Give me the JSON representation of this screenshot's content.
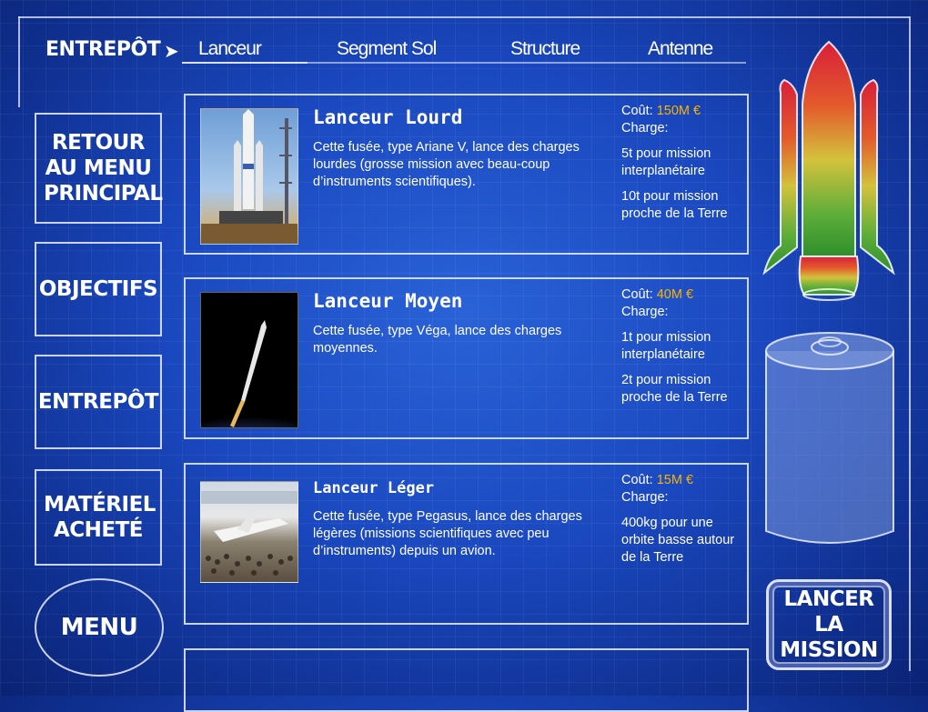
{
  "nav": {
    "brand": "ENTREPÔT",
    "tabs": [
      {
        "label": "Lanceur",
        "active": true
      },
      {
        "label": "Segment Sol",
        "active": false
      },
      {
        "label": "Structure",
        "active": false
      },
      {
        "label": "Antenne",
        "active": false
      }
    ]
  },
  "sidebar": {
    "items": [
      {
        "label": "RETOUR AU MENU PRINCIPAL"
      },
      {
        "label": "OBJECTIFS"
      },
      {
        "label": "ENTREPÔT"
      },
      {
        "label": "MATÉRIEL ACHETÉ"
      }
    ],
    "menu_label": "MENU"
  },
  "cards": [
    {
      "title": "Lanceur Lourd",
      "description": "Cette fusée, type Ariane V, lance des charges lourdes (grosse mission avec beau-coup d’instruments scientifiques).",
      "cost_label": "Coût:",
      "cost_value": "150M €",
      "charge_label": "Charge:",
      "charge_lines": [
        "5t pour mission interplanétaire",
        "10t pour mission proche de la Terre"
      ]
    },
    {
      "title": "Lanceur Moyen",
      "description": "Cette fusée, type Véga, lance des charges moyennes.",
      "cost_label": "Coût:",
      "cost_value": "40M €",
      "charge_label": "Charge:",
      "charge_lines": [
        "1t pour mission interplanétaire",
        "2t pour mission proche de la Terre"
      ]
    },
    {
      "title": "Lanceur Léger",
      "description": "Cette fusée, type Pegasus, lance des charges légères (missions scientifiques avec peu d’instruments) depuis un avion.",
      "cost_label": "Coût:",
      "cost_value": "15M €",
      "charge_label": "Charge:",
      "charge_lines": [
        "400kg pour une orbite basse autour de la Terre"
      ]
    }
  ],
  "launch_button": "LANCER LA MISSION",
  "colors": {
    "accent_cost": "#f7b500",
    "background": "#1a48bf"
  }
}
